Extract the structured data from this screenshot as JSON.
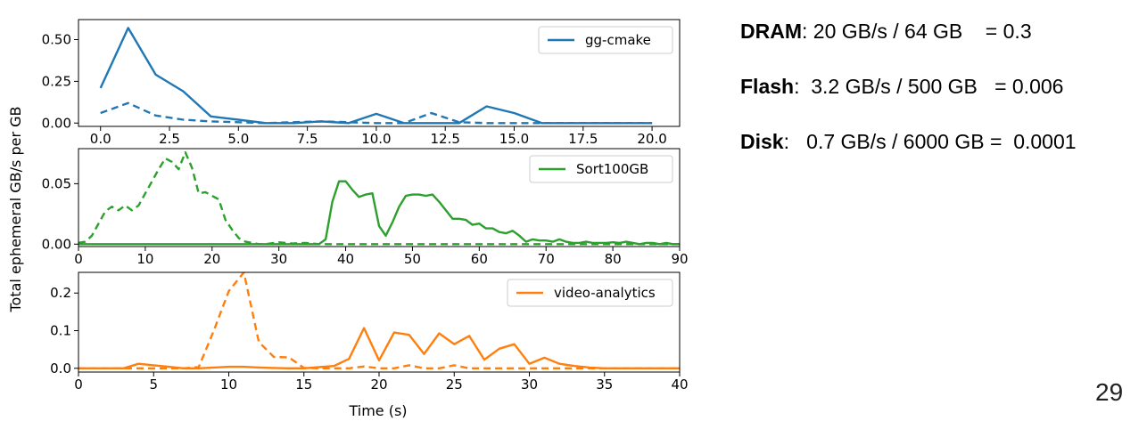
{
  "ylabel": "Total ephemeral GB/s per GB",
  "xlabel": "Time (s)",
  "ratios": [
    {
      "name": "DRAM",
      "rest": ": 20 GB/s / 64 GB    = 0.3"
    },
    {
      "name": "Flash",
      "rest": ":  3.2 GB/s / 500 GB   = 0.006"
    },
    {
      "name": "Disk",
      "rest": ":   0.7 GB/s / 6000 GB =  0.0001"
    }
  ],
  "slide_number": "29",
  "chart_data": [
    {
      "type": "line",
      "legend": "gg-cmake",
      "color": "#1f77b4",
      "legend_position": "top-right",
      "xlim": [
        -0.8,
        21
      ],
      "ylim": [
        -0.02,
        0.62
      ],
      "xticks": [
        0.0,
        2.5,
        5.0,
        7.5,
        10.0,
        12.5,
        15.0,
        17.5,
        20.0
      ],
      "xtick_labels": [
        "0.0",
        "2.5",
        "5.0",
        "7.5",
        "10.0",
        "12.5",
        "15.0",
        "17.5",
        "20.0"
      ],
      "yticks": [
        0.0,
        0.25,
        0.5
      ],
      "ytick_labels": [
        "0.00",
        "0.25",
        "0.50"
      ],
      "series": [
        {
          "style": "solid",
          "x": [
            0,
            1,
            2,
            3,
            4,
            5,
            6,
            7,
            8,
            9,
            10,
            11,
            12,
            13,
            14,
            15,
            16,
            17,
            18,
            19,
            20
          ],
          "y": [
            0.21,
            0.57,
            0.29,
            0.19,
            0.04,
            0.02,
            0.0,
            0.0,
            0.01,
            0.0,
            0.055,
            0.0,
            0.0,
            0.0,
            0.1,
            0.06,
            0.0,
            0.0,
            0.0,
            0.0,
            0.0
          ]
        },
        {
          "style": "dashed",
          "x": [
            0,
            1,
            2,
            3,
            4,
            5,
            6,
            7,
            8,
            9,
            10,
            11,
            12,
            13,
            14,
            15,
            16,
            17,
            18,
            19,
            20
          ],
          "y": [
            0.06,
            0.12,
            0.045,
            0.02,
            0.01,
            0.005,
            0.0,
            0.005,
            0.01,
            0.005,
            0.0,
            0.0,
            0.06,
            0.005,
            0.0,
            0.0,
            0.0,
            0.0,
            0.0,
            0.0,
            0.0
          ]
        }
      ]
    },
    {
      "type": "line",
      "legend": "Sort100GB",
      "color": "#2ca02c",
      "legend_position": "top-right",
      "xlim": [
        0,
        90
      ],
      "ylim": [
        -0.002,
        0.079
      ],
      "xticks": [
        0,
        10,
        20,
        30,
        40,
        50,
        60,
        70,
        80,
        90
      ],
      "xtick_labels": [
        "0",
        "10",
        "20",
        "30",
        "40",
        "50",
        "60",
        "70",
        "80",
        "90"
      ],
      "yticks": [
        0.0,
        0.05
      ],
      "ytick_labels": [
        "0.00",
        "0.05"
      ],
      "series": [
        {
          "style": "solid",
          "x": [
            0,
            35,
            36,
            37,
            38,
            39,
            40,
            41,
            42,
            43,
            44,
            45,
            46,
            47,
            48,
            49,
            50,
            51,
            52,
            53,
            54,
            55,
            56,
            57,
            58,
            59,
            60,
            61,
            62,
            63,
            64,
            65,
            66,
            67,
            68,
            69,
            70,
            71,
            72,
            73,
            74,
            75,
            76,
            77,
            78,
            79,
            80,
            81,
            82,
            83,
            84,
            85,
            86,
            87,
            88,
            89,
            90
          ],
          "y": [
            0,
            0,
            0,
            0.004,
            0.035,
            0.052,
            0.052,
            0.045,
            0.039,
            0.041,
            0.042,
            0.015,
            0.007,
            0.018,
            0.031,
            0.04,
            0.041,
            0.041,
            0.04,
            0.041,
            0.035,
            0.028,
            0.021,
            0.021,
            0.02,
            0.016,
            0.017,
            0.013,
            0.013,
            0.01,
            0.009,
            0.011,
            0.007,
            0.002,
            0.004,
            0.003,
            0.003,
            0.002,
            0.004,
            0.002,
            0.001,
            0.001,
            0.002,
            0.001,
            0.001,
            0.001,
            0.0015,
            0.001,
            0.002,
            0.001,
            0.0,
            0.001,
            0.001,
            0.0,
            0.001,
            0.0,
            0.0
          ]
        },
        {
          "style": "dashed",
          "x": [
            0,
            1,
            2,
            3,
            4,
            5,
            6,
            7,
            8,
            9,
            10,
            11,
            12,
            13,
            14,
            15,
            16,
            17,
            18,
            19,
            20,
            21,
            22,
            23,
            24,
            25,
            26,
            27,
            28,
            30,
            32,
            34,
            36,
            40,
            50,
            60,
            70,
            80,
            90
          ],
          "y": [
            0.001,
            0.002,
            0.007,
            0.017,
            0.027,
            0.031,
            0.028,
            0.032,
            0.028,
            0.032,
            0.042,
            0.052,
            0.062,
            0.071,
            0.068,
            0.062,
            0.076,
            0.063,
            0.042,
            0.043,
            0.04,
            0.037,
            0.02,
            0.012,
            0.005,
            0.002,
            0.001,
            0.0,
            0.0,
            0.0015,
            0.0005,
            0.001,
            0.0,
            0.0,
            0.0,
            0.0,
            0.0,
            0.0,
            0.0
          ]
        }
      ]
    },
    {
      "type": "line",
      "legend": "video-analytics",
      "color": "#ff7f0e",
      "legend_position": "top-right",
      "xlim": [
        0,
        40
      ],
      "ylim": [
        -0.01,
        0.255
      ],
      "xticks": [
        0,
        5,
        10,
        15,
        20,
        25,
        30,
        35,
        40
      ],
      "xtick_labels": [
        "0",
        "5",
        "10",
        "15",
        "20",
        "25",
        "30",
        "35",
        "40"
      ],
      "yticks": [
        0.0,
        0.1,
        0.2
      ],
      "ytick_labels": [
        "0.0",
        "0.1",
        "0.2"
      ],
      "series": [
        {
          "style": "solid",
          "x": [
            0,
            3,
            4,
            5,
            6,
            7,
            8,
            9,
            10,
            11,
            12,
            13,
            14,
            15,
            16,
            17,
            18,
            19,
            20,
            21,
            22,
            23,
            24,
            25,
            26,
            27,
            28,
            29,
            30,
            31,
            32,
            33,
            34,
            35,
            36,
            37,
            38,
            39,
            40
          ],
          "y": [
            0,
            0,
            0.012,
            0.008,
            0.004,
            0.0,
            0.0,
            0.002,
            0.004,
            0.004,
            0.002,
            0.001,
            0.0,
            0.0,
            0.003,
            0.006,
            0.025,
            0.107,
            0.021,
            0.095,
            0.089,
            0.038,
            0.093,
            0.064,
            0.086,
            0.023,
            0.052,
            0.064,
            0.012,
            0.028,
            0.012,
            0.006,
            0.002,
            0.0,
            0.0,
            0.0,
            0.0,
            0.0,
            0.0
          ]
        },
        {
          "style": "dashed",
          "x": [
            0,
            7,
            8,
            9,
            10,
            11,
            12,
            13,
            14,
            15,
            16,
            18,
            19,
            20,
            21,
            22,
            23,
            24,
            25,
            26,
            27,
            30,
            40
          ],
          "y": [
            0,
            0,
            0.003,
            0.1,
            0.205,
            0.255,
            0.07,
            0.03,
            0.029,
            0.001,
            0.0,
            0.0,
            0.005,
            0.0,
            0.0,
            0.008,
            0.0,
            0.0,
            0.008,
            0.0,
            0.0,
            0.0,
            0.0
          ]
        }
      ]
    }
  ]
}
